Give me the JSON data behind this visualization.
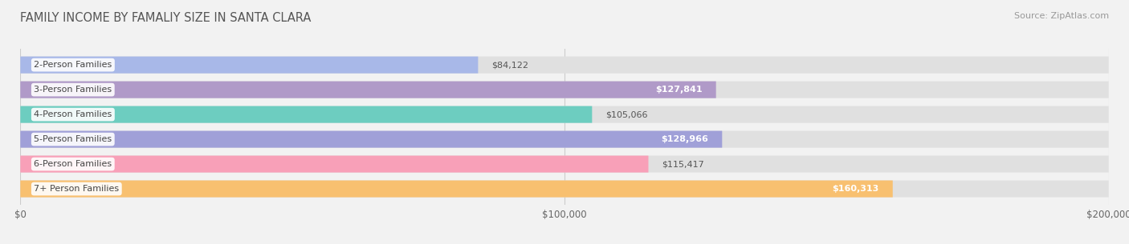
{
  "title": "FAMILY INCOME BY FAMALIY SIZE IN SANTA CLARA",
  "source": "Source: ZipAtlas.com",
  "categories": [
    "2-Person Families",
    "3-Person Families",
    "4-Person Families",
    "5-Person Families",
    "6-Person Families",
    "7+ Person Families"
  ],
  "values": [
    84122,
    127841,
    105066,
    128966,
    115417,
    160313
  ],
  "bar_colors": [
    "#a8b8e8",
    "#b09ac8",
    "#6dcdc0",
    "#a0a0d8",
    "#f8a0b8",
    "#f8c070"
  ],
  "value_labels": [
    "$84,122",
    "$127,841",
    "$105,066",
    "$128,966",
    "$115,417",
    "$160,313"
  ],
  "value_inside": [
    false,
    true,
    false,
    true,
    false,
    true
  ],
  "xlim": [
    0,
    200000
  ],
  "xticks": [
    0,
    100000,
    200000
  ],
  "xticklabels": [
    "$0",
    "$100,000",
    "$200,000"
  ],
  "background_color": "#f2f2f2",
  "bar_background": "#e0e0e0",
  "title_fontsize": 10.5,
  "source_fontsize": 8,
  "label_fontsize": 8,
  "value_fontsize": 8,
  "bar_height": 0.68
}
